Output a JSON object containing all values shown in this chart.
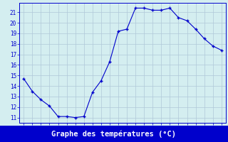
{
  "x": [
    0,
    1,
    2,
    3,
    4,
    5,
    6,
    7,
    8,
    9,
    10,
    11,
    12,
    13,
    14,
    15,
    16,
    17,
    18,
    19,
    20,
    21,
    22,
    23
  ],
  "y": [
    14.7,
    13.5,
    12.7,
    12.1,
    11.1,
    11.1,
    11.0,
    11.1,
    13.4,
    14.5,
    16.3,
    19.2,
    19.4,
    21.4,
    21.4,
    21.2,
    21.2,
    21.4,
    20.5,
    20.2,
    19.4,
    18.5,
    17.8,
    17.4
  ],
  "line_color": "#0000cc",
  "marker": "+",
  "marker_color": "#0000cc",
  "bg_color": "#d4eef0",
  "grid_color": "#b0c8d8",
  "xlabel": "Graphe des températures (°C)",
  "xlabel_color": "#ffffff",
  "xlabel_bg": "#0000cc",
  "yticks": [
    11,
    12,
    13,
    14,
    15,
    16,
    17,
    18,
    19,
    20,
    21
  ],
  "ylim": [
    10.5,
    21.9
  ],
  "xlim": [
    -0.5,
    23.5
  ],
  "xticks": [
    0,
    1,
    2,
    3,
    4,
    5,
    6,
    7,
    8,
    9,
    10,
    11,
    12,
    13,
    14,
    15,
    16,
    17,
    18,
    19,
    20,
    21,
    22,
    23
  ],
  "tick_color": "#0000cc",
  "tick_fontsize": 5.5,
  "xlabel_fontsize": 7.5,
  "spine_color": "#0000cc"
}
